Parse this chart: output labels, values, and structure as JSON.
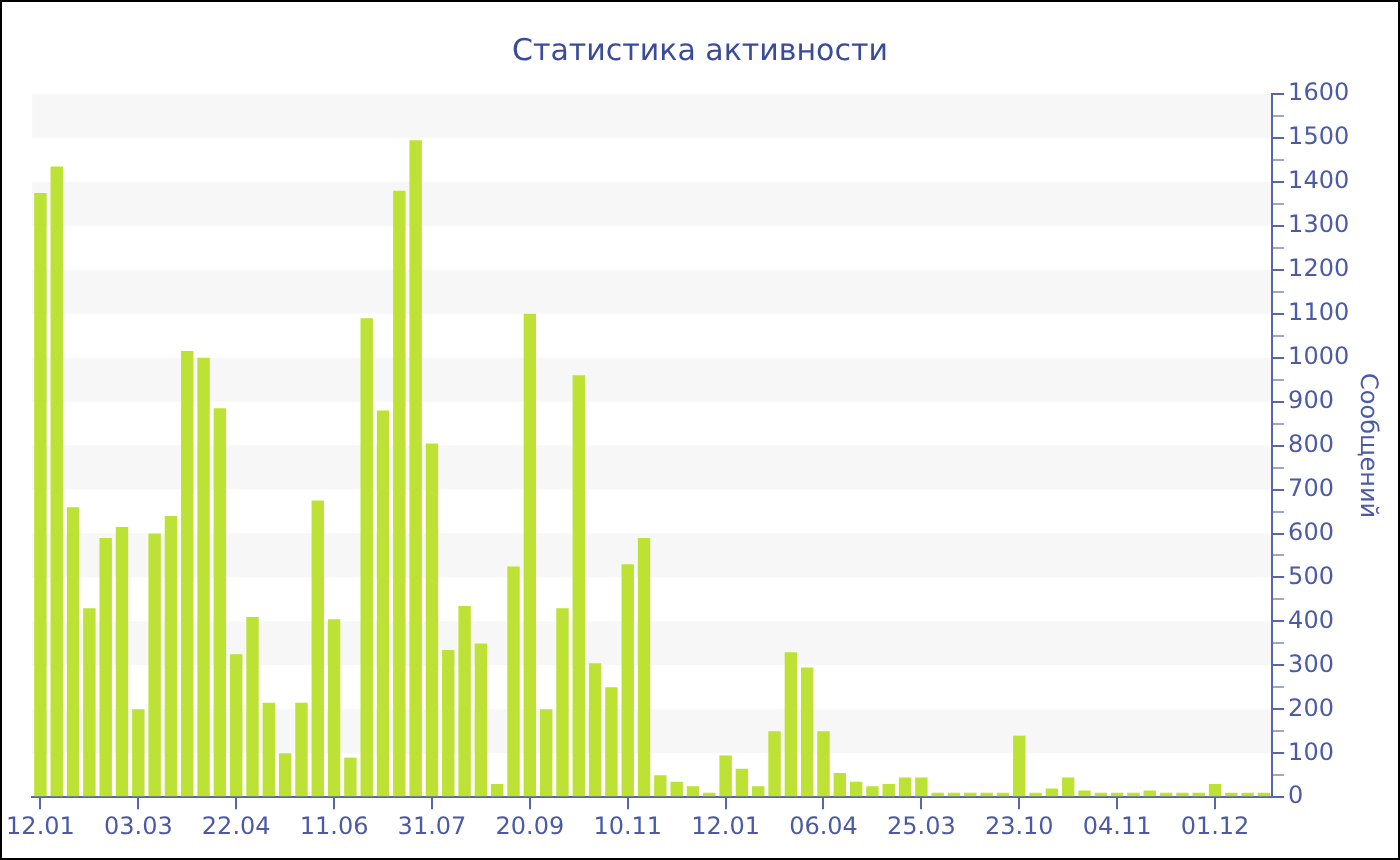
{
  "chart_data": {
    "type": "bar",
    "title": "Статистика активности",
    "ylabel": "Сообщений",
    "categories": [
      "12.01",
      null,
      null,
      null,
      null,
      null,
      "03.03",
      null,
      null,
      null,
      null,
      null,
      "22.04",
      null,
      null,
      null,
      null,
      null,
      "11.06",
      null,
      null,
      null,
      null,
      null,
      "31.07",
      null,
      null,
      null,
      null,
      null,
      "20.09",
      null,
      null,
      null,
      null,
      null,
      "10.11",
      null,
      null,
      null,
      null,
      null,
      "12.01",
      null,
      null,
      null,
      null,
      null,
      "06.04",
      null,
      null,
      null,
      null,
      null,
      "25.03",
      null,
      null,
      null,
      null,
      null,
      "23.10",
      null,
      null,
      null,
      null,
      null,
      "04.11",
      null,
      null,
      null,
      null,
      null,
      "01.12",
      null,
      null,
      null
    ],
    "values": [
      1375,
      1435,
      660,
      430,
      590,
      615,
      200,
      600,
      640,
      1015,
      1000,
      885,
      325,
      410,
      215,
      100,
      215,
      675,
      405,
      90,
      1090,
      880,
      1380,
      1495,
      805,
      335,
      435,
      350,
      30,
      525,
      1100,
      200,
      430,
      960,
      305,
      250,
      530,
      590,
      50,
      35,
      25,
      10,
      95,
      65,
      25,
      150,
      330,
      295,
      150,
      55,
      35,
      25,
      30,
      45,
      45,
      10,
      10,
      10,
      10,
      10,
      140,
      10,
      20,
      45,
      15,
      10,
      10,
      10,
      15,
      10,
      10,
      10,
      30,
      10,
      10,
      10
    ],
    "color": "#bde134",
    "ylim": [
      0,
      1600
    ],
    "yticks": [
      0,
      {
        "value": 50,
        "label": null
      },
      100,
      {
        "value": 150,
        "label": null
      },
      200,
      {
        "value": 250,
        "label": null
      },
      300,
      {
        "value": 350,
        "label": null
      },
      400,
      {
        "value": 450,
        "label": null
      },
      500,
      {
        "value": 550,
        "label": null
      },
      600,
      {
        "value": 650,
        "label": null
      },
      700,
      {
        "value": 750,
        "label": null
      },
      800,
      {
        "value": 850,
        "label": null
      },
      900,
      {
        "value": 950,
        "label": null
      },
      1000,
      {
        "value": 1050,
        "label": null
      },
      1100,
      {
        "value": 1150,
        "label": null
      },
      1200,
      {
        "value": 1250,
        "label": null
      },
      1300,
      {
        "value": 1350,
        "label": null
      },
      1400,
      {
        "value": 1450,
        "label": null
      },
      1500,
      {
        "value": 1550,
        "label": null
      },
      1600
    ],
    "bands": [
      {
        "axis": "y",
        "from": 100,
        "to": 200,
        "color": "#f7f7f7"
      },
      {
        "axis": "y",
        "from": 300,
        "to": 400,
        "color": "#f7f7f7"
      },
      {
        "axis": "y",
        "from": 500,
        "to": 600,
        "color": "#f7f7f7"
      },
      {
        "axis": "y",
        "from": 700,
        "to": 800,
        "color": "#f7f7f7"
      },
      {
        "axis": "y",
        "from": 900,
        "to": 1000,
        "color": "#f7f7f7"
      },
      {
        "axis": "y",
        "from": 1100,
        "to": 1200,
        "color": "#f7f7f7"
      },
      {
        "axis": "y",
        "from": 1300,
        "to": 1400,
        "color": "#f7f7f7"
      },
      {
        "axis": "y",
        "from": 1500,
        "to": 1600,
        "color": "#f7f7f7"
      }
    ]
  }
}
